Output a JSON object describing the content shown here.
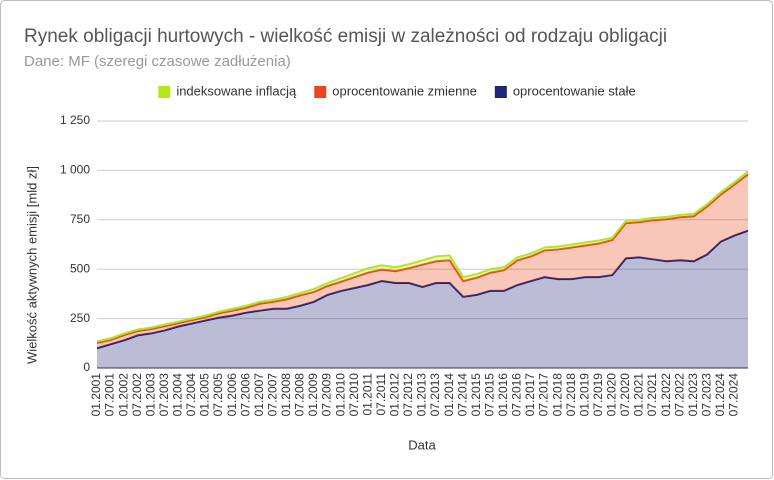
{
  "chart_data": {
    "type": "stacked_area",
    "title": "Rynek obligacji hurtowych - wielkość emisji w zależności od rodzaju obligacji",
    "subtitle": "Dane: MF (szeregi czasowe zadłużenia)",
    "x_label": "Data",
    "y_label": "Wielkość aktywnych emisji [mld zł]",
    "categories": [
      "01.2001",
      "07.2001",
      "01.2002",
      "07.2002",
      "01.2003",
      "07.2003",
      "01.2004",
      "07.2004",
      "01.2005",
      "07.2005",
      "01.2006",
      "07.2006",
      "01.2007",
      "07.2007",
      "01.2008",
      "07.2008",
      "01.2009",
      "07.2009",
      "01.2010",
      "07.2010",
      "01.2011",
      "07.2011",
      "01.2012",
      "07.2012",
      "01.2013",
      "07.2013",
      "01.2014",
      "07.2014",
      "01.2015",
      "07.2015",
      "01.2016",
      "07.2016",
      "01.2017",
      "07.2017",
      "01.2018",
      "07.2018",
      "01.2019",
      "07.2019",
      "01.2020",
      "07.2020",
      "01.2021",
      "07.2021",
      "01.2022",
      "07.2022",
      "01.2023",
      "07.2023",
      "01.2024",
      "07.2024",
      null
    ],
    "series": [
      {
        "name": "indeksowane inflacją",
        "color": "#b5e61d",
        "values": [
          8,
          8,
          8,
          8,
          8,
          8,
          8,
          8,
          8,
          8,
          10,
          10,
          10,
          10,
          12,
          12,
          15,
          15,
          18,
          20,
          22,
          22,
          20,
          20,
          22,
          25,
          25,
          20,
          18,
          18,
          15,
          15,
          15,
          15,
          15,
          15,
          15,
          15,
          12,
          12,
          12,
          12,
          12,
          12,
          12,
          12,
          12,
          12,
          15
        ]
      },
      {
        "name": "oprocentowanie zmienne",
        "color": "#e8461c",
        "values": [
          27,
          22,
          27,
          22,
          22,
          22,
          17,
          17,
          17,
          22,
          25,
          25,
          35,
          35,
          48,
          53,
          50,
          45,
          47,
          55,
          63,
          58,
          60,
          75,
          113,
          110,
          115,
          80,
          87,
          92,
          105,
          125,
          125,
          135,
          150,
          160,
          160,
          170,
          178,
          178,
          178,
          198,
          213,
          218,
          228,
          243,
          238,
          258,
          285
        ]
      },
      {
        "name": "oprocentowanie stałe",
        "color": "#1f2577",
        "values": [
          100,
          120,
          140,
          165,
          175,
          190,
          210,
          225,
          240,
          255,
          265,
          280,
          290,
          300,
          300,
          315,
          335,
          370,
          390,
          405,
          420,
          440,
          430,
          430,
          410,
          430,
          430,
          360,
          370,
          390,
          390,
          420,
          440,
          460,
          450,
          450,
          460,
          460,
          470,
          555,
          560,
          550,
          540,
          545,
          540,
          575,
          640,
          670,
          695
        ]
      }
    ],
    "ylim": [
      0,
      1250
    ],
    "yticks": [
      0,
      250,
      500,
      750,
      {
        "value": 1000,
        "label": "1 000"
      },
      {
        "value": 1250,
        "label": "1 250"
      }
    ],
    "grid": true,
    "legend": "top"
  }
}
